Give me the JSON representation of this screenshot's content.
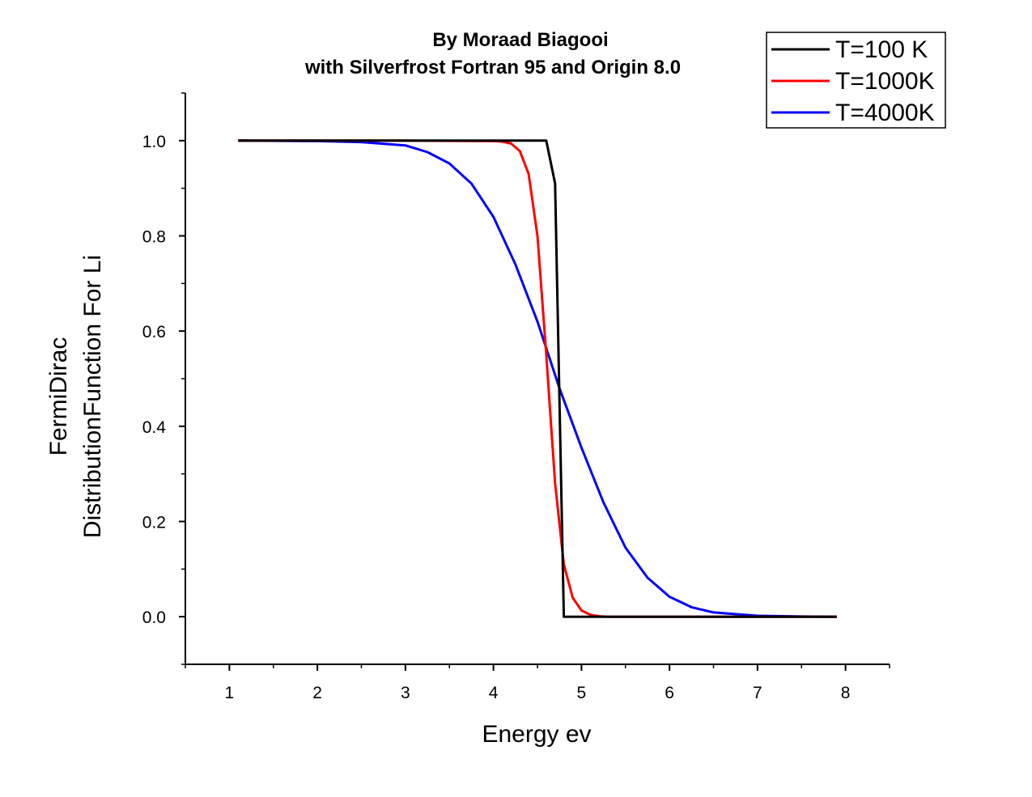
{
  "chart_data": {
    "type": "line",
    "title": [
      "By Moraad Biagooi",
      "with Silverfrost Fortran 95  and Origin 8.0"
    ],
    "xlabel": "Energy ev",
    "ylabel": [
      "FermiDirac",
      "DistributionFunction For Li"
    ],
    "xlim": [
      0.5,
      8.5
    ],
    "ylim": [
      -0.1,
      1.1
    ],
    "xticks": [
      1,
      2,
      3,
      4,
      5,
      6,
      7,
      8
    ],
    "xtick_labels": [
      "1",
      "2",
      "3",
      "4",
      "5",
      "6",
      "7",
      "8"
    ],
    "yticks": [
      0.0,
      0.2,
      0.4,
      0.6,
      0.8,
      1.0
    ],
    "ytick_labels": [
      "0.0",
      "0.2",
      "0.4",
      "0.6",
      "0.8",
      "1.0"
    ],
    "grid": false,
    "legend": "top-right",
    "series": [
      {
        "name": "T=100 K",
        "color": "#000000",
        "x": [
          1.1,
          4.6,
          4.7,
          4.8,
          7.9
        ],
        "y": [
          1.0,
          1.0,
          0.91,
          0.0,
          0.0
        ]
      },
      {
        "name": "T=1000K",
        "color": "#ff0000",
        "x": [
          1.1,
          3.0,
          4.0,
          4.1,
          4.2,
          4.3,
          4.4,
          4.5,
          4.6,
          4.7,
          4.8,
          4.9,
          5.0,
          5.1,
          5.2,
          5.3,
          5.5,
          6.0,
          7.9
        ],
        "y": [
          1.0,
          1.0,
          0.999,
          0.998,
          0.994,
          0.978,
          0.93,
          0.8,
          0.55,
          0.28,
          0.11,
          0.04,
          0.013,
          0.004,
          0.001,
          0.0,
          0.0,
          0.0,
          0.0
        ]
      },
      {
        "name": "T=4000K",
        "color": "#0000ff",
        "x": [
          1.1,
          2.0,
          2.5,
          3.0,
          3.25,
          3.5,
          3.75,
          4.0,
          4.25,
          4.5,
          4.75,
          5.0,
          5.25,
          5.5,
          5.75,
          6.0,
          6.25,
          6.5,
          7.0,
          7.5,
          7.9
        ],
        "y": [
          1.0,
          0.999,
          0.997,
          0.99,
          0.976,
          0.952,
          0.91,
          0.84,
          0.74,
          0.62,
          0.48,
          0.355,
          0.24,
          0.145,
          0.082,
          0.042,
          0.02,
          0.009,
          0.002,
          0.0005,
          0.0
        ]
      }
    ]
  }
}
